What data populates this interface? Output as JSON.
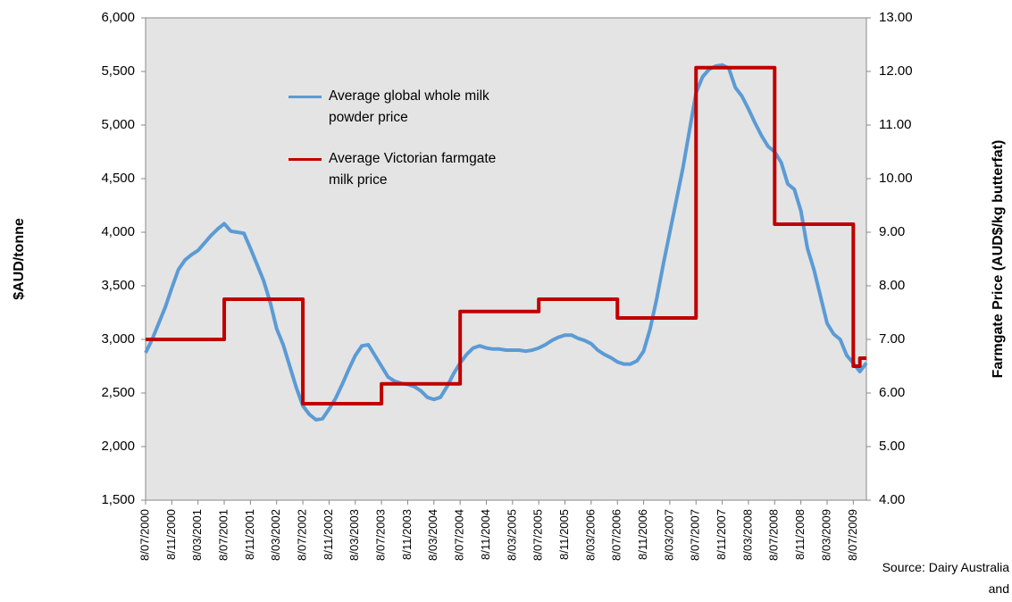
{
  "chart_data": {
    "type": "line",
    "y_label": "$AUD/tonne",
    "y2_label": "Farmgate Price (AUD$/kg butterfat)",
    "annotation": "Source: Dairy Australia and",
    "categories": [
      "8/07/2000",
      null,
      null,
      null,
      "8/11/2000",
      null,
      null,
      null,
      "8/03/2001",
      null,
      null,
      null,
      "8/07/2001",
      null,
      null,
      null,
      "8/11/2001",
      null,
      null,
      null,
      "8/03/2002",
      null,
      null,
      null,
      "8/07/2002",
      null,
      null,
      null,
      "8/11/2002",
      null,
      null,
      null,
      "8/03/2003",
      null,
      null,
      null,
      "8/07/2003",
      null,
      null,
      null,
      "8/11/2003",
      null,
      null,
      null,
      "8/03/2004",
      null,
      null,
      null,
      "8/07/2004",
      null,
      null,
      null,
      "8/11/2004",
      null,
      null,
      null,
      "8/03/2005",
      null,
      null,
      null,
      "8/07/2005",
      null,
      null,
      null,
      "8/11/2005",
      null,
      null,
      null,
      "8/03/2006",
      null,
      null,
      null,
      "8/07/2006",
      null,
      null,
      null,
      "8/11/2006",
      null,
      null,
      null,
      "8/03/2007",
      null,
      null,
      null,
      "8/07/2007",
      null,
      null,
      null,
      "8/11/2007",
      null,
      null,
      null,
      "8/03/2008",
      null,
      null,
      null,
      "8/07/2008",
      null,
      null,
      null,
      "8/11/2008",
      null,
      null,
      null,
      "8/03/2009",
      null,
      null,
      null,
      "8/07/2009",
      null,
      null
    ],
    "series": [
      {
        "name": "Average global whole milk powder price",
        "color": "#5b9bd5",
        "axis": "y",
        "values": [
          2875,
          3000,
          3150,
          3300,
          3480,
          3650,
          3740,
          3790,
          3830,
          3900,
          3970,
          4030,
          4080,
          4010,
          4000,
          3990,
          3850,
          3700,
          3550,
          3350,
          3100,
          2950,
          2750,
          2550,
          2380,
          2300,
          2250,
          2260,
          2350,
          2450,
          2580,
          2720,
          2850,
          2940,
          2950,
          2850,
          2750,
          2650,
          2610,
          2590,
          2580,
          2560,
          2520,
          2460,
          2440,
          2460,
          2560,
          2680,
          2780,
          2860,
          2920,
          2940,
          2920,
          2910,
          2910,
          2900,
          2900,
          2900,
          2890,
          2900,
          2920,
          2950,
          2990,
          3020,
          3040,
          3040,
          3010,
          2990,
          2960,
          2900,
          2860,
          2830,
          2790,
          2770,
          2770,
          2800,
          2890,
          3100,
          3380,
          3700,
          4000,
          4300,
          4600,
          4950,
          5300,
          5450,
          5520,
          5550,
          5560,
          5530,
          5350,
          5270,
          5150,
          5020,
          4900,
          4800,
          4750,
          4650,
          4450,
          4400,
          4200,
          3850,
          3650,
          3400,
          3150,
          3050,
          3000,
          2850,
          2780,
          2700,
          2780
        ]
      },
      {
        "name": "Average Victorian farmgate milk price",
        "color": "#c00000",
        "axis": "y2",
        "step": "post",
        "values": [
          7,
          7,
          7,
          7,
          7,
          7,
          7,
          7,
          7,
          7,
          7,
          7,
          7.75,
          7.75,
          7.75,
          7.75,
          7.75,
          7.75,
          7.75,
          7.75,
          7.75,
          7.75,
          7.75,
          7.75,
          5.8,
          5.8,
          5.8,
          5.8,
          5.8,
          5.8,
          5.8,
          5.8,
          5.8,
          5.8,
          5.8,
          5.8,
          6.17,
          6.17,
          6.17,
          6.17,
          6.17,
          6.17,
          6.17,
          6.17,
          6.17,
          6.17,
          6.17,
          6.17,
          7.52,
          7.52,
          7.52,
          7.52,
          7.52,
          7.52,
          7.52,
          7.52,
          7.52,
          7.52,
          7.52,
          7.52,
          7.75,
          7.75,
          7.75,
          7.75,
          7.75,
          7.75,
          7.75,
          7.75,
          7.75,
          7.75,
          7.75,
          7.75,
          7.4,
          7.4,
          7.4,
          7.4,
          7.4,
          7.4,
          7.4,
          7.4,
          7.4,
          7.4,
          7.4,
          7.4,
          12.07,
          12.07,
          12.07,
          12.07,
          12.07,
          12.07,
          12.07,
          12.07,
          12.07,
          12.07,
          12.07,
          12.07,
          9.15,
          9.15,
          9.15,
          9.15,
          9.15,
          9.15,
          9.15,
          9.15,
          9.15,
          9.15,
          9.15,
          9.15,
          6.5,
          6.65,
          6.65
        ]
      }
    ],
    "ylim": [
      1500,
      6000
    ],
    "yticks": [
      {
        "value": 1500,
        "label": "1,500"
      },
      {
        "value": 2000,
        "label": "2,000"
      },
      {
        "value": 2500,
        "label": "2,500"
      },
      {
        "value": 3000,
        "label": "3,000"
      },
      {
        "value": 3500,
        "label": "3,500"
      },
      {
        "value": 4000,
        "label": "4,000"
      },
      {
        "value": 4500,
        "label": "4,500"
      },
      {
        "value": 5000,
        "label": "5,000"
      },
      {
        "value": 5500,
        "label": "5,500"
      },
      {
        "value": 6000,
        "label": "6,000"
      }
    ],
    "y2lim": [
      4,
      13
    ],
    "y2ticks": [
      {
        "value": 4,
        "label": "4.00"
      },
      {
        "value": 5,
        "label": "5.00"
      },
      {
        "value": 6,
        "label": "6.00"
      },
      {
        "value": 7,
        "label": "7.00"
      },
      {
        "value": 8,
        "label": "8.00"
      },
      {
        "value": 9,
        "label": "9.00"
      },
      {
        "value": 10,
        "label": "10.00"
      },
      {
        "value": 11,
        "label": "11.00"
      },
      {
        "value": 12,
        "label": "12.00"
      },
      {
        "value": 13,
        "label": "13.00"
      }
    ],
    "grid": false
  }
}
